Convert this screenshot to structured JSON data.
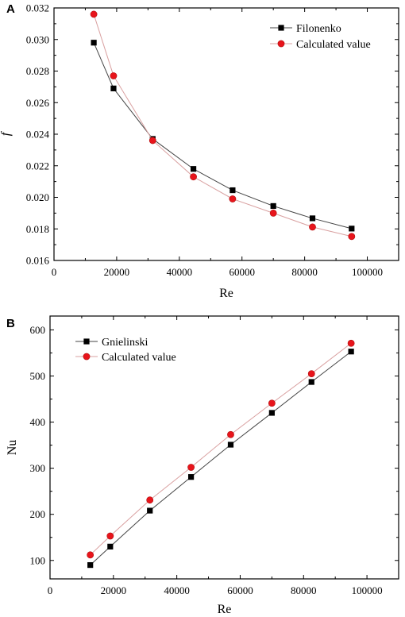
{
  "chart_data": [
    {
      "type": "line",
      "panel_label": "A",
      "xlabel": "Re",
      "ylabel": "f",
      "xlim": [
        0,
        110000
      ],
      "ylim": [
        0.016,
        0.032
      ],
      "x_ticks": [
        0,
        20000,
        40000,
        60000,
        80000,
        100000
      ],
      "y_ticks": [
        0.016,
        0.018,
        0.02,
        0.022,
        0.024,
        0.026,
        0.028,
        0.03,
        0.032
      ],
      "y_tick_labels": [
        "0.016",
        "0.018",
        "0.020",
        "0.022",
        "0.024",
        "0.026",
        "0.028",
        "0.030",
        "0.032"
      ],
      "grid": false,
      "legend_position": "top-right",
      "series": [
        {
          "name": "Filonenko",
          "marker": "square",
          "color": "#000000",
          "line_color": "#444444",
          "x": [
            12700,
            19000,
            31500,
            44500,
            57000,
            70000,
            82500,
            95000
          ],
          "y": [
            0.0298,
            0.0269,
            0.0237,
            0.0218,
            0.02045,
            0.01945,
            0.01867,
            0.01802
          ]
        },
        {
          "name": "Calculated value",
          "marker": "circle",
          "color": "#e8141b",
          "line_color": "#d9a0a0",
          "x": [
            12700,
            19000,
            31500,
            44500,
            57000,
            70000,
            82500,
            95000
          ],
          "y": [
            0.0316,
            0.0277,
            0.0236,
            0.0213,
            0.0199,
            0.019,
            0.01812,
            0.01752
          ]
        }
      ]
    },
    {
      "type": "line",
      "panel_label": "B",
      "xlabel": "Re",
      "ylabel": "Nu",
      "xlim": [
        0,
        110000
      ],
      "ylim": [
        60,
        630
      ],
      "x_ticks": [
        0,
        20000,
        40000,
        60000,
        80000,
        100000
      ],
      "y_ticks": [
        100,
        200,
        300,
        400,
        500,
        600
      ],
      "y_tick_labels": [
        "100",
        "200",
        "300",
        "400",
        "500",
        "600"
      ],
      "grid": false,
      "legend_position": "top-left",
      "series": [
        {
          "name": "Gnielinski",
          "marker": "square",
          "color": "#000000",
          "line_color": "#444444",
          "x": [
            12700,
            19000,
            31500,
            44500,
            57000,
            70000,
            82500,
            95000
          ],
          "y": [
            90,
            130,
            208,
            281,
            351,
            420,
            487,
            553
          ]
        },
        {
          "name": "Calculated value",
          "marker": "circle",
          "color": "#e8141b",
          "line_color": "#d9a0a0",
          "x": [
            12700,
            19000,
            31500,
            44500,
            57000,
            70000,
            82500,
            95000
          ],
          "y": [
            112,
            153,
            231,
            302,
            373,
            441,
            505,
            571
          ]
        }
      ]
    }
  ]
}
